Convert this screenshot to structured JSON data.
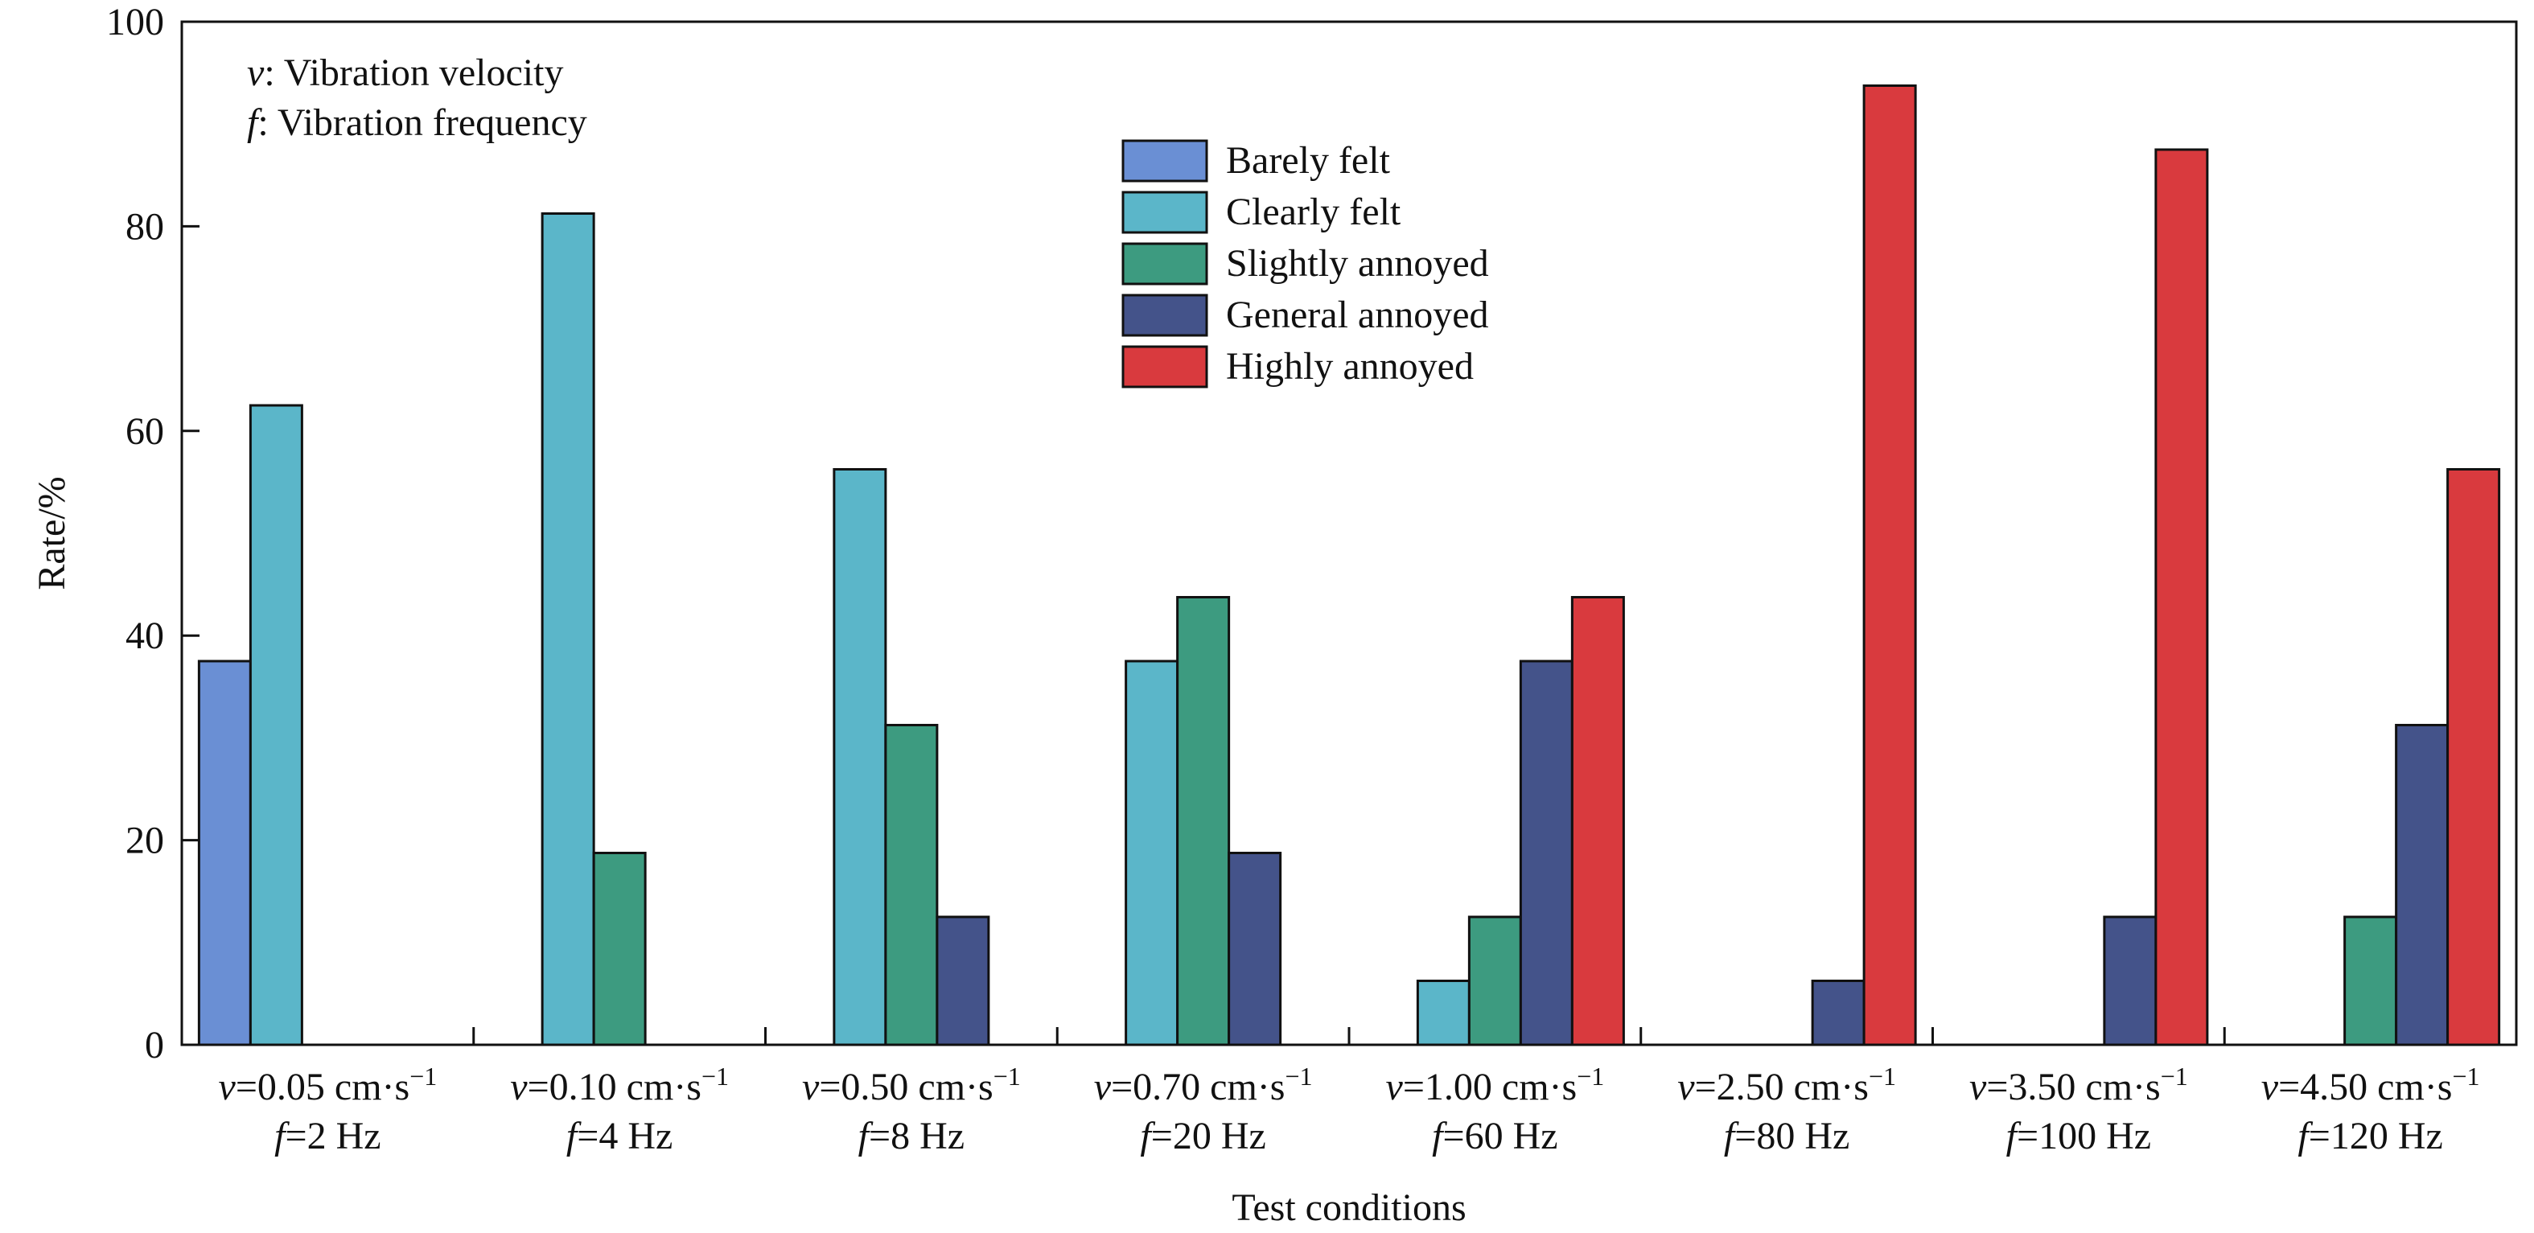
{
  "chart_data": {
    "type": "bar",
    "xlabel": "Test conditions",
    "ylabel": "Rate/%",
    "ylim": [
      0,
      100
    ],
    "yticks": [
      0,
      20,
      40,
      60,
      80,
      100
    ],
    "grid": false,
    "legend_position": "top-center",
    "notes": [
      {
        "symbol": "v",
        "text": ": Vibration velocity"
      },
      {
        "symbol": "f",
        "text": ": Vibration frequency"
      }
    ],
    "categories": [
      {
        "v": "=0.05 cm·s",
        "exp": "−1",
        "f": "=2 Hz"
      },
      {
        "v": "=0.10 cm·s",
        "exp": "−1",
        "f": "=4 Hz"
      },
      {
        "v": "=0.50 cm·s",
        "exp": "−1",
        "f": "=8 Hz"
      },
      {
        "v": "=0.70 cm·s",
        "exp": "−1",
        "f": "=20 Hz"
      },
      {
        "v": "=1.00 cm·s",
        "exp": "−1",
        "f": "=60 Hz"
      },
      {
        "v": "=2.50 cm·s",
        "exp": "−1",
        "f": "=80 Hz"
      },
      {
        "v": "=3.50 cm·s",
        "exp": "−1",
        "f": "=100 Hz"
      },
      {
        "v": "=4.50 cm·s",
        "exp": "−1",
        "f": "=120 Hz"
      }
    ],
    "series": [
      {
        "name": "Barely felt",
        "color": "#6a8fd4",
        "values": [
          37.5,
          0,
          0,
          0,
          0,
          0,
          0,
          0
        ]
      },
      {
        "name": "Clearly felt",
        "color": "#5bb6c9",
        "values": [
          62.5,
          81.25,
          56.25,
          37.5,
          6.25,
          0,
          0,
          0
        ]
      },
      {
        "name": "Slightly annoyed",
        "color": "#3d9b80",
        "values": [
          0,
          18.75,
          31.25,
          43.75,
          12.5,
          0,
          0,
          12.5
        ]
      },
      {
        "name": "General annoyed",
        "color": "#44538a",
        "values": [
          0,
          0,
          12.5,
          18.75,
          37.5,
          6.25,
          12.5,
          31.25
        ]
      },
      {
        "name": "Highly annoyed",
        "color": "#d93a3e",
        "values": [
          0,
          0,
          0,
          0,
          43.75,
          93.75,
          87.5,
          56.25
        ]
      }
    ]
  }
}
